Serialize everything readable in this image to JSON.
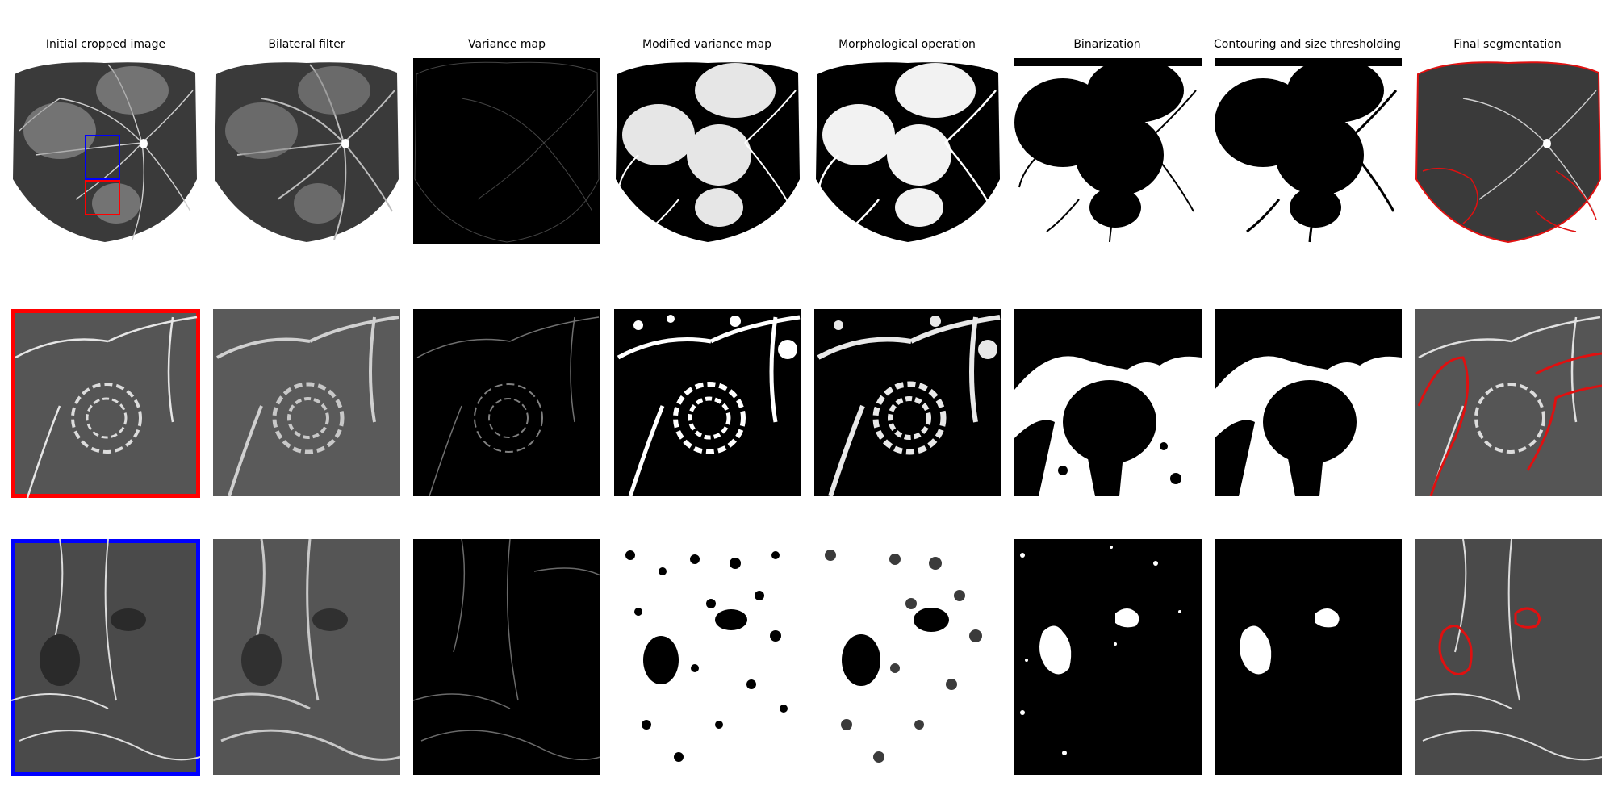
{
  "columns": [
    {
      "title": "Initial cropped image"
    },
    {
      "title": "Bilateral filter"
    },
    {
      "title": "Variance map"
    },
    {
      "title": "Modified variance map"
    },
    {
      "title": "Morphological operation"
    },
    {
      "title": "Binarization"
    },
    {
      "title": "Contouring and size thresholding"
    },
    {
      "title": "Final segmentation"
    }
  ],
  "colors": {
    "red_roi": "#ff0000",
    "blue_roi": "#0000ff",
    "segmentation_contour": "#e01010"
  }
}
